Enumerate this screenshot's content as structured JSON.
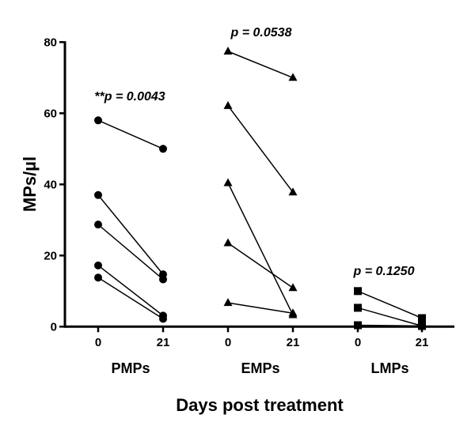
{
  "chart_data": {
    "type": "line",
    "title": "",
    "xlabel": "Days post treatment",
    "ylabel": "MPs/µl",
    "ylim": [
      0,
      80
    ],
    "yticks": [
      "0",
      "20",
      "40",
      "60",
      "80"
    ],
    "grid": false,
    "groups": [
      {
        "name": "PMPs",
        "x_labels": [
          "0",
          "21"
        ],
        "marker": "circle",
        "annotation": "**p = 0.0043",
        "pairs": [
          [
            58,
            50
          ],
          [
            37,
            14.7
          ],
          [
            28.7,
            13.3
          ],
          [
            17.2,
            3.1
          ],
          [
            13.8,
            2.2
          ]
        ]
      },
      {
        "name": "EMPs",
        "x_labels": [
          "0",
          "21"
        ],
        "marker": "triangle",
        "annotation": "p = 0.0538",
        "pairs": [
          [
            77.4,
            70
          ],
          [
            62.1,
            37.8
          ],
          [
            40.4,
            3.3
          ],
          [
            23.5,
            10.9
          ],
          [
            6.7,
            3.8
          ]
        ]
      },
      {
        "name": "LMPs",
        "x_labels": [
          "0",
          "21"
        ],
        "marker": "square",
        "annotation": "p = 0.1250",
        "pairs": [
          [
            10,
            2.4
          ],
          [
            5.3,
            0.2
          ],
          [
            0.4,
            0.2
          ]
        ]
      }
    ],
    "colors": {
      "marks": "#000000"
    }
  }
}
